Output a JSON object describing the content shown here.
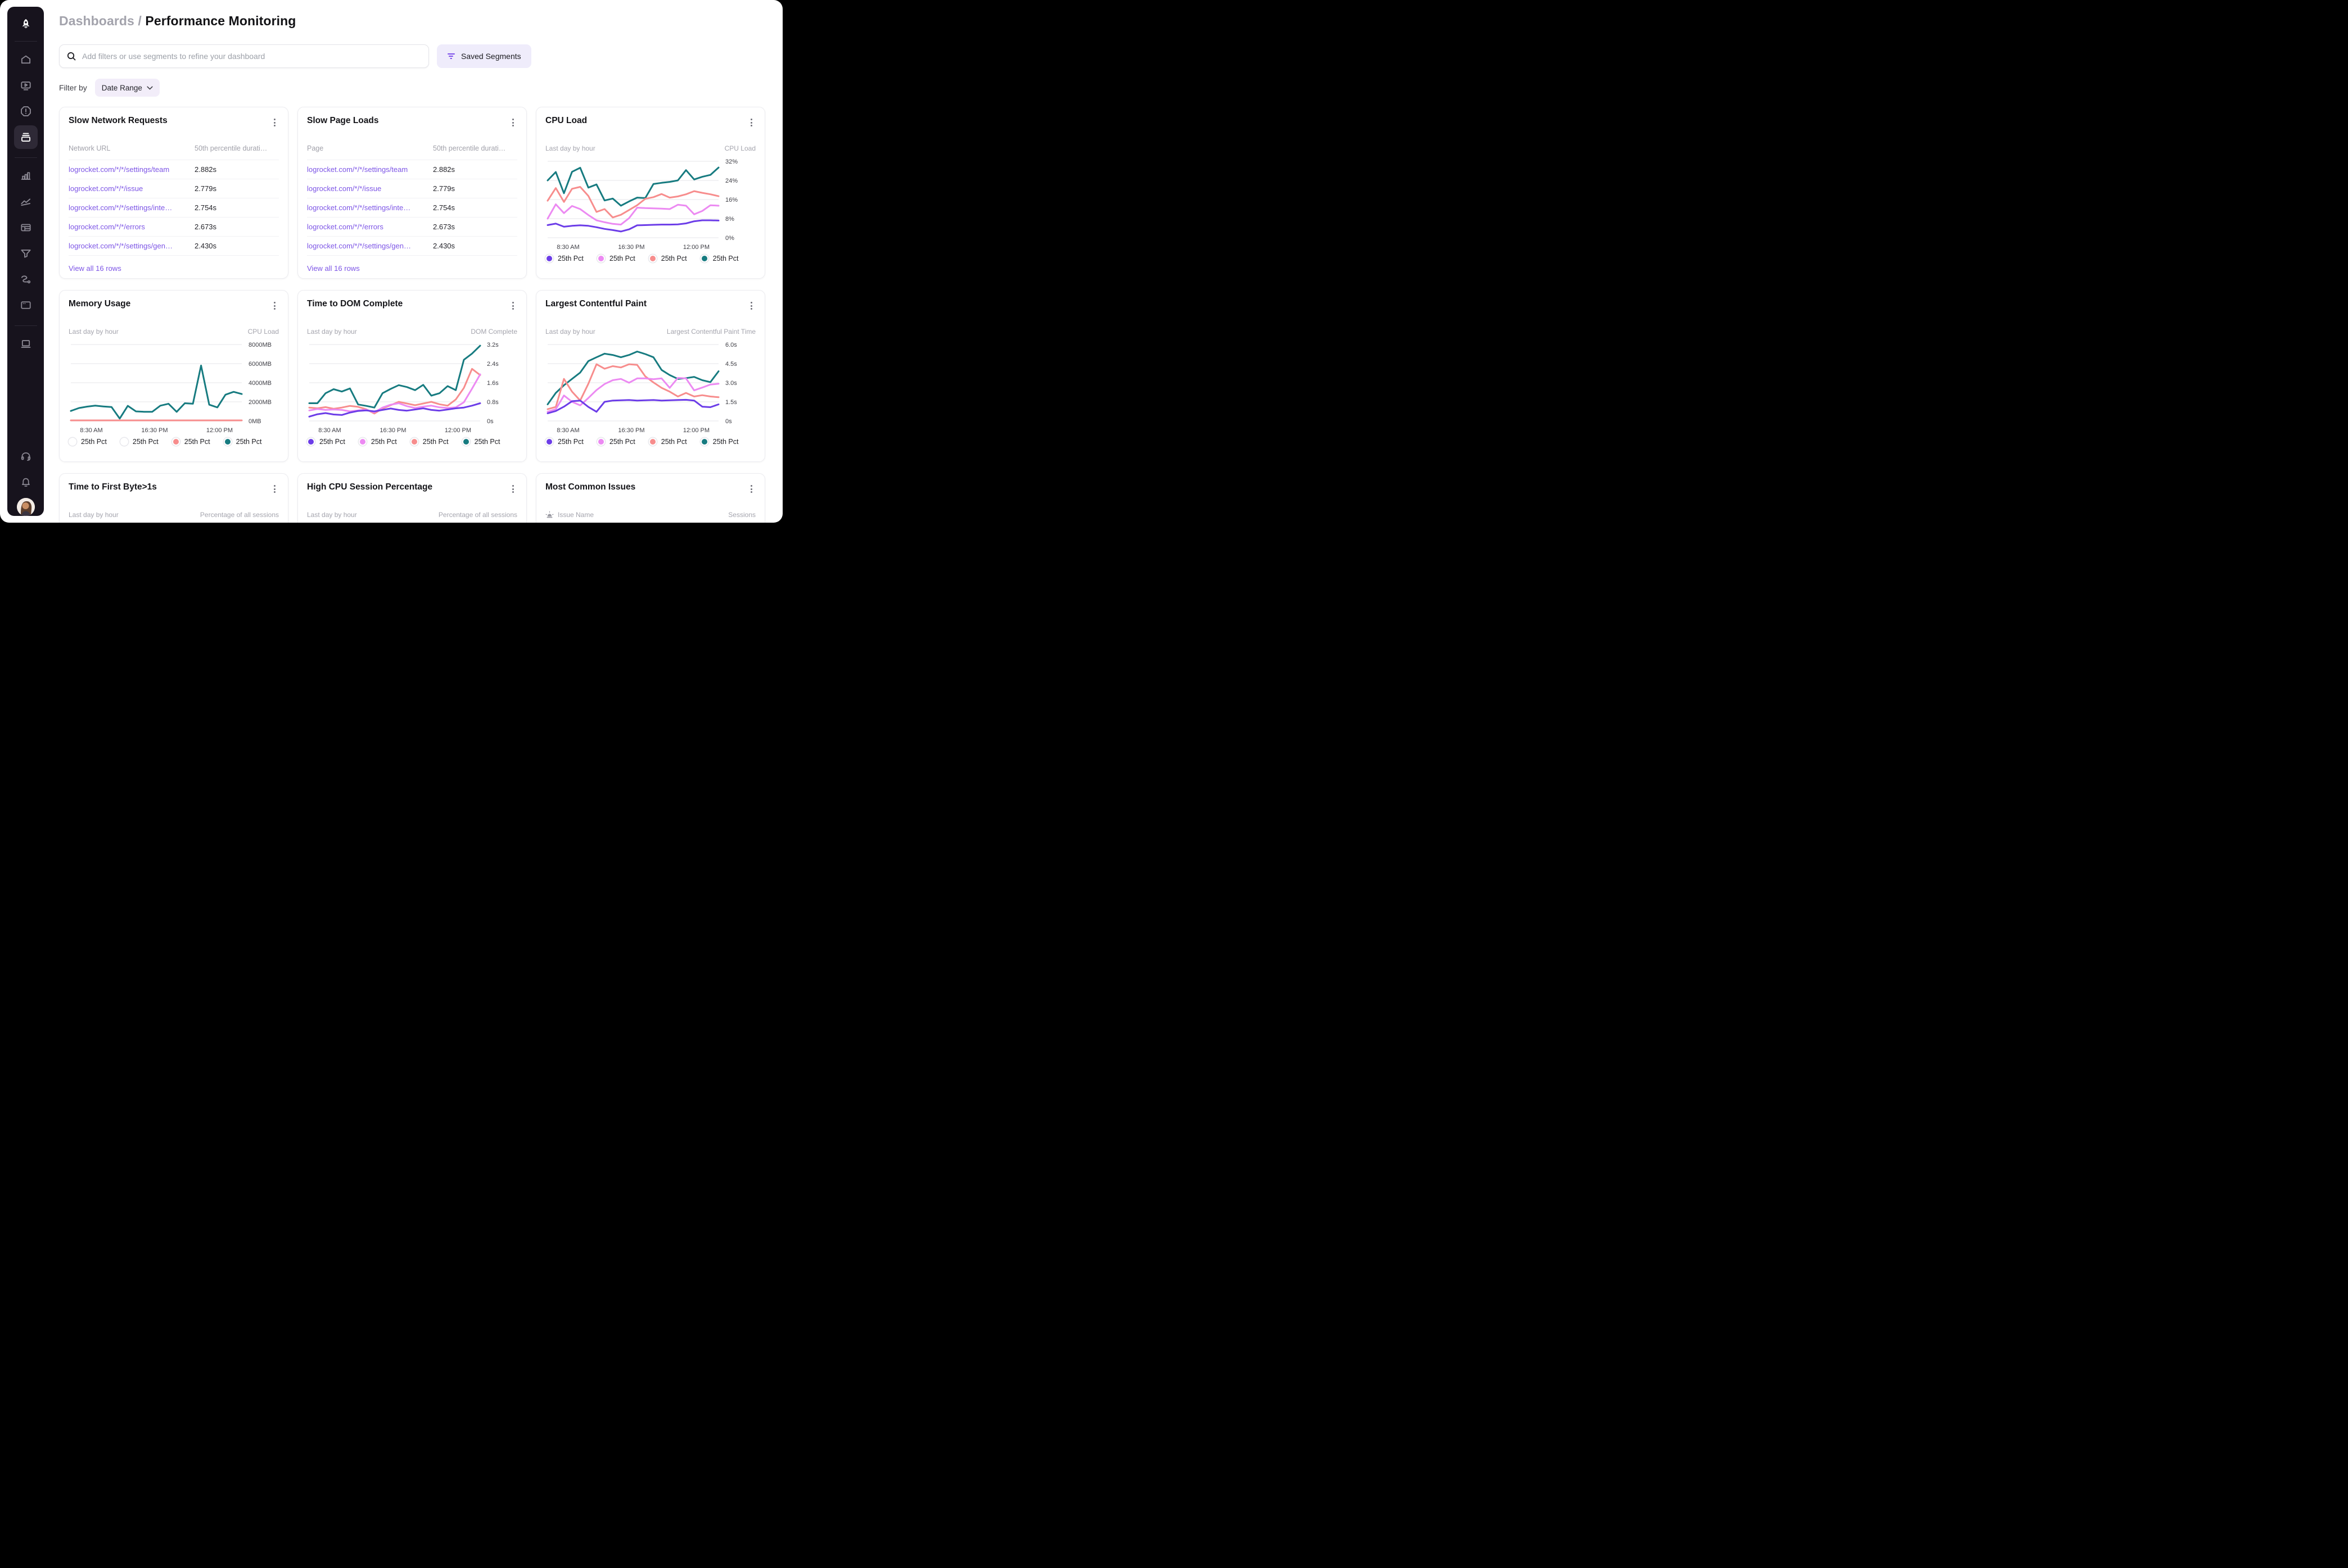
{
  "header": {
    "breadcrumb": "Dashboards /",
    "title": "Performance Monitoring"
  },
  "search": {
    "placeholder": "Add filters or use segments to refine your dashboard",
    "icon": "search-icon"
  },
  "saved_segments": {
    "label": "Saved Segments",
    "icon": "filter-lines-icon"
  },
  "filter": {
    "label": "Filter by",
    "chip_label": "Date Range",
    "chip_icon": "chevron-down-icon"
  },
  "colors": {
    "accent_purple": "#6c3de8",
    "violet": "#ec8af2",
    "salmon": "#f78d8d",
    "teal": "#177b80",
    "link_purple": "#7d55e6",
    "saved_segments_bg": "#efecfb",
    "chip_bg": "#f2edf9",
    "sidebar_bg": "#17131d",
    "sidebar_active_bg": "#2e2936"
  },
  "sidebar": {
    "logo": "rocket-logo",
    "nav_top": [
      "home",
      "session-replay",
      "alerts",
      "dashboards"
    ],
    "active_item": "dashboards",
    "nav_middle": [
      "bar-chart",
      "line-chart",
      "table",
      "funnel",
      "user-path",
      "browser-window"
    ],
    "nav_lower": [
      "docs"
    ],
    "nav_bottom": [
      "support-headset",
      "notifications-bell",
      "user-avatar"
    ]
  },
  "tables": [
    {
      "title": "Slow Network Requests",
      "col1": "Network URL",
      "col2": "50th percentile durati…",
      "rows": [
        [
          "logrocket.com/*/*/settings/team",
          "2.882s"
        ],
        [
          "logrocket.com/*/*/issue",
          "2.779s"
        ],
        [
          "logrocket.com/*/*/settings/inte…",
          "2.754s"
        ],
        [
          "logrocket.com/*/*/errors",
          "2.673s"
        ],
        [
          "logrocket.com/*/*/settings/gen…",
          "2.430s"
        ]
      ],
      "view_all": "View all 16 rows"
    },
    {
      "title": "Slow Page Loads",
      "col1": "Page",
      "col2": "50th percentile durati…",
      "rows": [
        [
          "logrocket.com/*/*/settings/team",
          "2.882s"
        ],
        [
          "logrocket.com/*/*/issue",
          "2.779s"
        ],
        [
          "logrocket.com/*/*/settings/inte…",
          "2.754s"
        ],
        [
          "logrocket.com/*/*/errors",
          "2.673s"
        ],
        [
          "logrocket.com/*/*/settings/gen…",
          "2.430s"
        ]
      ],
      "view_all": "View all 16 rows"
    }
  ],
  "chart_data": [
    {
      "type": "line",
      "title": "CPU Load",
      "subtitle_left": "Last day by hour",
      "axis_label": "CPU Load",
      "x_ticks": [
        "8:30 AM",
        "16:30 PM",
        "12:00 PM"
      ],
      "y_ticks": [
        "32%",
        "24%",
        "16%",
        "8%",
        "0%"
      ],
      "ylim": [
        0,
        32
      ],
      "grid": true,
      "legend_position": "bottom",
      "series": [
        {
          "name": "25th Pct",
          "color": "#177b80",
          "values": [
            24,
            27.5,
            18.6,
            27.6,
            29.3,
            21,
            22.3,
            15.6,
            16.4,
            13.4,
            15.2,
            16.8,
            16.6,
            22.5,
            23,
            23.4,
            24,
            28.3,
            24.4,
            25.5,
            26.3,
            29.4
          ]
        },
        {
          "name": "25th Pct",
          "color": "#f78d8d",
          "values": [
            15.5,
            20.8,
            15,
            20.5,
            21.3,
            17.5,
            10.8,
            12,
            8.5,
            9.6,
            11.6,
            13.6,
            16.3,
            17,
            18.3,
            16.8,
            17.3,
            18.2,
            19.5,
            18.8,
            18.2,
            17.4
          ]
        },
        {
          "name": "25th Pct",
          "color": "#ec8af2",
          "values": [
            8,
            14,
            10.3,
            13.3,
            12,
            9.5,
            7.3,
            6.5,
            5.8,
            5.5,
            8.2,
            12.6,
            12.4,
            12.3,
            12.2,
            12,
            13.8,
            13.4,
            9.8,
            11.2,
            13.6,
            13.4
          ]
        },
        {
          "name": "25th Pct",
          "color": "#6c3de8",
          "values": [
            5.3,
            5.9,
            4.6,
            5,
            5.2,
            5,
            4.4,
            3.7,
            3.2,
            2.6,
            3.5,
            5.2,
            5.3,
            5.4,
            5.5,
            5.5,
            5.6,
            6,
            6.9,
            7.3,
            7.3,
            7.2
          ]
        }
      ],
      "legend": [
        {
          "label": "25th Pct",
          "color": "#6c3de8"
        },
        {
          "label": "25th Pct",
          "color": "#ec8af2"
        },
        {
          "label": "25th Pct",
          "color": "#f78d8d"
        },
        {
          "label": "25th Pct",
          "color": "#177b80"
        }
      ]
    },
    {
      "type": "line",
      "title": "Memory Usage",
      "subtitle_left": "Last day by hour",
      "axis_label": "CPU Load",
      "x_ticks": [
        "8:30 AM",
        "16:30 PM",
        "12:00 PM"
      ],
      "y_ticks": [
        "8000MB",
        "6000MB",
        "4000MB",
        "2000MB",
        "0MB"
      ],
      "ylim": [
        0,
        8000
      ],
      "grid": true,
      "legend_position": "bottom",
      "series": [
        {
          "name": "25th Pct",
          "color": "#f78d8d",
          "values": [
            60,
            60,
            60,
            60,
            60,
            60,
            60,
            60,
            60,
            60,
            60,
            60,
            60,
            60,
            60,
            60,
            60,
            60,
            60,
            60,
            60,
            60
          ]
        },
        {
          "name": "25th Pct",
          "color": "#177b80",
          "values": [
            1050,
            1350,
            1500,
            1600,
            1520,
            1450,
            250,
            1580,
            1000,
            960,
            960,
            1600,
            1800,
            950,
            1850,
            1800,
            5800,
            1700,
            1420,
            2750,
            3050,
            2820
          ]
        }
      ],
      "legend": [
        {
          "label": "25th Pct",
          "color": null
        },
        {
          "label": "25th Pct",
          "color": null
        },
        {
          "label": "25th Pct",
          "color": "#f78d8d"
        },
        {
          "label": "25th Pct",
          "color": "#177b80"
        }
      ]
    },
    {
      "type": "line",
      "title": "Time to DOM Complete",
      "subtitle_left": "Last day by hour",
      "axis_label": "DOM Complete",
      "x_ticks": [
        "8:30 AM",
        "16:30 PM",
        "12:00 PM"
      ],
      "y_ticks": [
        "3.2s",
        "2.4s",
        "1.6s",
        "0.8s",
        "0s"
      ],
      "ylim": [
        0,
        3.2
      ],
      "grid": true,
      "legend_position": "bottom",
      "series": [
        {
          "name": "25th Pct",
          "color": "#177b80",
          "values": [
            0.74,
            0.74,
            1.16,
            1.33,
            1.23,
            1.36,
            0.69,
            0.63,
            0.56,
            1.16,
            1.34,
            1.5,
            1.42,
            1.29,
            1.51,
            1.06,
            1.16,
            1.46,
            1.29,
            2.56,
            2.82,
            3.15
          ]
        },
        {
          "name": "25th Pct",
          "color": "#f78d8d",
          "values": [
            0.56,
            0.53,
            0.58,
            0.51,
            0.56,
            0.63,
            0.59,
            0.49,
            0.31,
            0.52,
            0.66,
            0.8,
            0.73,
            0.66,
            0.73,
            0.8,
            0.7,
            0.64,
            0.9,
            1.38,
            2.18,
            1.92
          ]
        },
        {
          "name": "25th Pct",
          "color": "#ec8af2",
          "values": [
            0.44,
            0.5,
            0.46,
            0.48,
            0.46,
            0.4,
            0.44,
            0.47,
            0.36,
            0.56,
            0.68,
            0.74,
            0.62,
            0.54,
            0.6,
            0.64,
            0.57,
            0.54,
            0.57,
            0.78,
            1.35,
            1.95
          ]
        },
        {
          "name": "25th Pct",
          "color": "#6c3de8",
          "values": [
            0.18,
            0.28,
            0.33,
            0.27,
            0.25,
            0.35,
            0.42,
            0.44,
            0.4,
            0.46,
            0.52,
            0.46,
            0.43,
            0.48,
            0.53,
            0.46,
            0.43,
            0.48,
            0.53,
            0.56,
            0.64,
            0.74
          ]
        }
      ],
      "legend": [
        {
          "label": "25th Pct",
          "color": "#6c3de8"
        },
        {
          "label": "25th Pct",
          "color": "#ec8af2"
        },
        {
          "label": "25th Pct",
          "color": "#f78d8d"
        },
        {
          "label": "25th Pct",
          "color": "#177b80"
        }
      ]
    },
    {
      "type": "line",
      "title": "Largest Contentful Paint",
      "subtitle_left": "Last day by hour",
      "axis_label": "Largest Contentful Paint Time",
      "x_ticks": [
        "8:30 AM",
        "16:30 PM",
        "12:00 PM"
      ],
      "y_ticks": [
        "6.0s",
        "4.5s",
        "3.0s",
        "1.5s",
        "0s"
      ],
      "ylim": [
        0,
        6
      ],
      "grid": true,
      "legend_position": "bottom",
      "series": [
        {
          "name": "25th Pct",
          "color": "#177b80",
          "values": [
            1.3,
            2.2,
            2.8,
            3.3,
            3.8,
            4.7,
            5,
            5.28,
            5.18,
            5,
            5.18,
            5.45,
            5.25,
            5,
            4,
            3.6,
            3.3,
            3.36,
            3.46,
            3.2,
            3.05,
            3.9
          ]
        },
        {
          "name": "25th Pct",
          "color": "#f78d8d",
          "values": [
            0.92,
            1.1,
            3.3,
            2.3,
            1.6,
            2.92,
            4.45,
            4.1,
            4.3,
            4.2,
            4.45,
            4.4,
            3.5,
            3.02,
            2.6,
            2.3,
            1.92,
            2.2,
            1.92,
            2.02,
            1.92,
            1.86
          ]
        },
        {
          "name": "25th Pct",
          "color": "#ec8af2",
          "values": [
            0.72,
            0.92,
            2,
            1.5,
            1.22,
            1.8,
            2.42,
            2.9,
            3.2,
            3.3,
            3,
            3.34,
            3.34,
            3.28,
            3.34,
            2.6,
            3.38,
            3.34,
            2.4,
            2.62,
            2.86,
            2.92
          ]
        },
        {
          "name": "25th Pct",
          "color": "#6c3de8",
          "values": [
            0.6,
            0.78,
            1.12,
            1.55,
            1.6,
            1.1,
            0.72,
            1.5,
            1.6,
            1.62,
            1.64,
            1.6,
            1.62,
            1.64,
            1.6,
            1.62,
            1.64,
            1.66,
            1.6,
            1.12,
            1.08,
            1.3
          ]
        }
      ],
      "legend": [
        {
          "label": "25th Pct",
          "color": "#6c3de8"
        },
        {
          "label": "25th Pct",
          "color": "#ec8af2"
        },
        {
          "label": "25th Pct",
          "color": "#f78d8d"
        },
        {
          "label": "25th Pct",
          "color": "#177b80"
        }
      ]
    }
  ],
  "bottom_cards": [
    {
      "title": "Time to First Byte>1s",
      "subtitle_left": "Last day by hour",
      "subtitle_right": "Percentage of all sessions"
    },
    {
      "title": "High CPU Session Percentage",
      "subtitle_left": "Last day by hour",
      "subtitle_right": "Percentage of all sessions"
    },
    {
      "title": "Most Common Issues",
      "col1": "Issue Name",
      "col1_icon": "siren-icon",
      "col2": "Sessions"
    }
  ]
}
